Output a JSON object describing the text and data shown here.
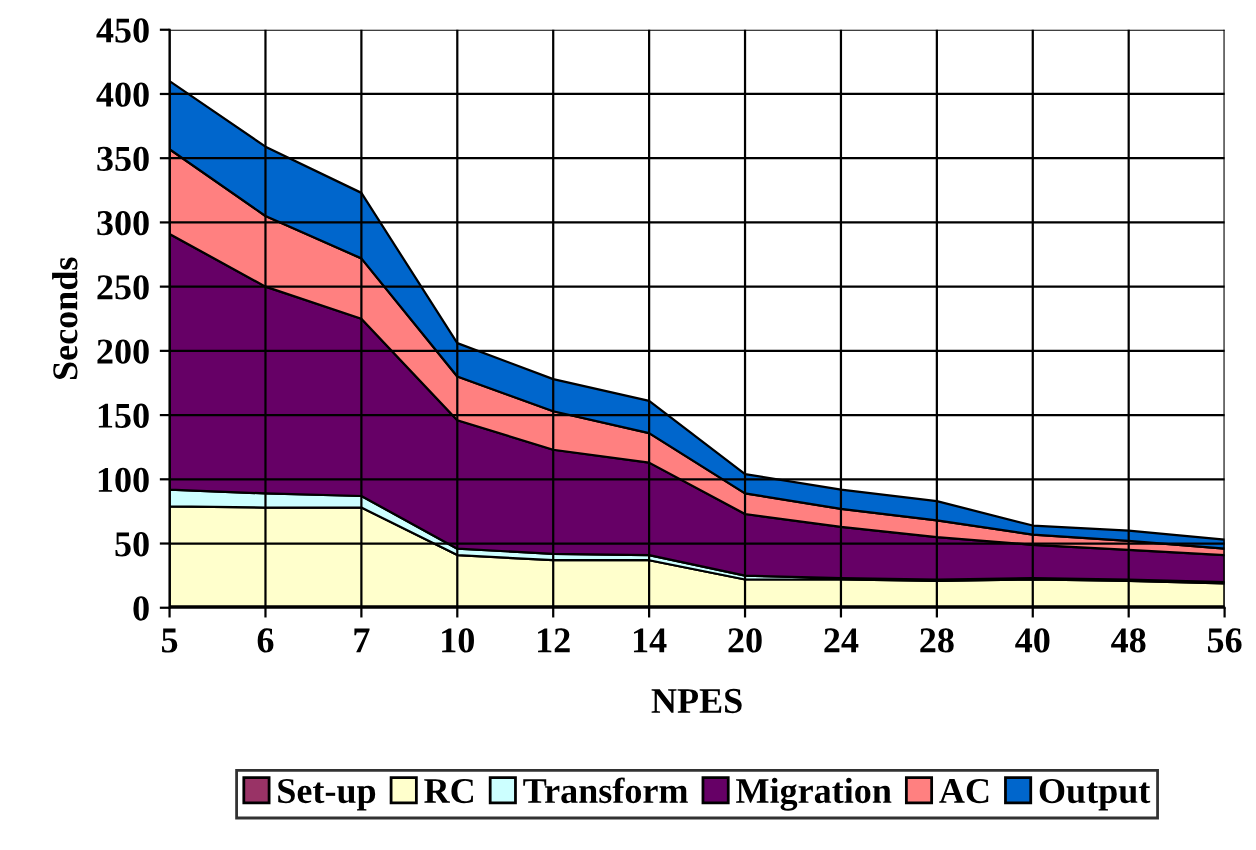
{
  "chart_data": {
    "type": "area",
    "stacked": true,
    "xlabel": "NPES",
    "ylabel": "Seconds",
    "categories": [
      "5",
      "6",
      "7",
      "10",
      "12",
      "14",
      "20",
      "24",
      "28",
      "40",
      "48",
      "56"
    ],
    "series": [
      {
        "name": "Set-up",
        "color": "#993366",
        "values": [
          1,
          1,
          1,
          1,
          1,
          1,
          1,
          1,
          1,
          1,
          1,
          1
        ]
      },
      {
        "name": "RC",
        "color": "#ffffcc",
        "values": [
          78,
          77,
          77,
          40,
          36,
          36,
          21,
          21,
          20,
          21,
          20,
          18
        ]
      },
      {
        "name": "Transform",
        "color": "#ccffff",
        "values": [
          13,
          11,
          9,
          5,
          5,
          4,
          3,
          1,
          1,
          1,
          1,
          1
        ]
      },
      {
        "name": "Migration",
        "color": "#660066",
        "values": [
          199,
          161,
          138,
          100,
          81,
          72,
          48,
          40,
          33,
          26,
          23,
          21
        ]
      },
      {
        "name": "AC",
        "color": "#ff8080",
        "values": [
          66,
          55,
          47,
          34,
          30,
          23,
          16,
          14,
          13,
          8,
          7,
          5
        ]
      },
      {
        "name": "Output",
        "color": "#0066cc",
        "values": [
          53,
          54,
          51,
          26,
          25,
          25,
          15,
          15,
          15,
          7,
          8,
          7
        ]
      }
    ],
    "ylim": [
      0,
      450
    ],
    "yticks": [
      0,
      50,
      100,
      150,
      200,
      250,
      300,
      350,
      400,
      450
    ],
    "grid": true,
    "legend": "bottom"
  }
}
